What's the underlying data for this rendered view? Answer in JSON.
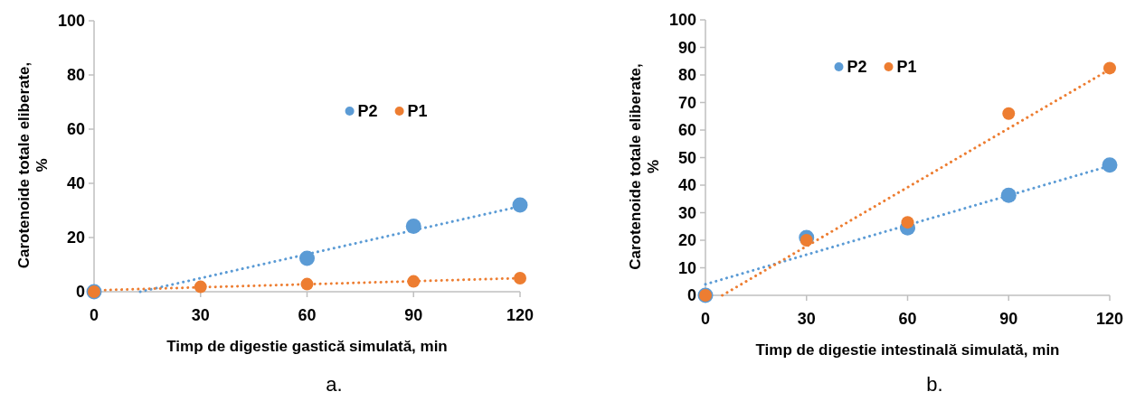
{
  "chart_data": [
    {
      "type": "scatter",
      "xlabel": "Timp de digestie gastică simulată, min",
      "ylabel": "Carotenoide totale eliberate, %",
      "xlim": [
        0,
        120
      ],
      "xticks": [
        0,
        30,
        60,
        90,
        120
      ],
      "ylim": [
        0,
        100
      ],
      "yticks": [
        0,
        20,
        40,
        60,
        80,
        100
      ],
      "grid": false,
      "legend": "top right",
      "marker": "circle",
      "annotations": [
        "a."
      ],
      "series": [
        {
          "type": "line",
          "color": "#5b9bd5",
          "x": [
            13,
            120
          ],
          "values": [
            0,
            31.5
          ],
          "line_style": "dotted",
          "marker": "none"
        },
        {
          "type": "line",
          "color": "#ed7d31",
          "x": [
            0,
            120
          ],
          "values": [
            0.5,
            5
          ],
          "line_style": "dotted",
          "marker": "none"
        },
        {
          "name": "P2",
          "color": "#5b9bd5",
          "x": [
            0,
            60,
            90,
            120
          ],
          "values": [
            0,
            12.3,
            24.2,
            32
          ]
        },
        {
          "name": "P1",
          "color": "#ed7d31",
          "x": [
            0,
            30,
            60,
            90,
            120
          ],
          "values": [
            0,
            1.8,
            2.8,
            3.8,
            5
          ]
        }
      ]
    },
    {
      "type": "scatter",
      "xlabel": "Timp de digestie intestinală simulată, min",
      "ylabel": "Carotenoide totale eliberate, %",
      "xlim": [
        0,
        120
      ],
      "xticks": [
        0,
        30,
        60,
        90,
        120
      ],
      "ylim": [
        0,
        100
      ],
      "yticks": [
        0,
        10,
        20,
        30,
        40,
        50,
        60,
        70,
        80,
        90,
        100
      ],
      "grid": false,
      "legend": "top",
      "marker": "circle",
      "annotations": [
        "b."
      ],
      "series": [
        {
          "type": "line",
          "color": "#5b9bd5",
          "x": [
            0,
            120
          ],
          "values": [
            4,
            47
          ],
          "line_style": "dotted",
          "marker": "none"
        },
        {
          "type": "line",
          "color": "#ed7d31",
          "x": [
            5,
            120
          ],
          "values": [
            0,
            82
          ],
          "line_style": "dotted",
          "marker": "none"
        },
        {
          "name": "P2",
          "color": "#5b9bd5",
          "x": [
            0,
            30,
            60,
            90,
            120
          ],
          "values": [
            0,
            21,
            24.5,
            36.3,
            47.3
          ]
        },
        {
          "name": "P1",
          "color": "#ed7d31",
          "x": [
            0,
            30,
            60,
            90,
            120
          ],
          "values": [
            0,
            20,
            26.5,
            66,
            82.5
          ]
        }
      ]
    }
  ]
}
